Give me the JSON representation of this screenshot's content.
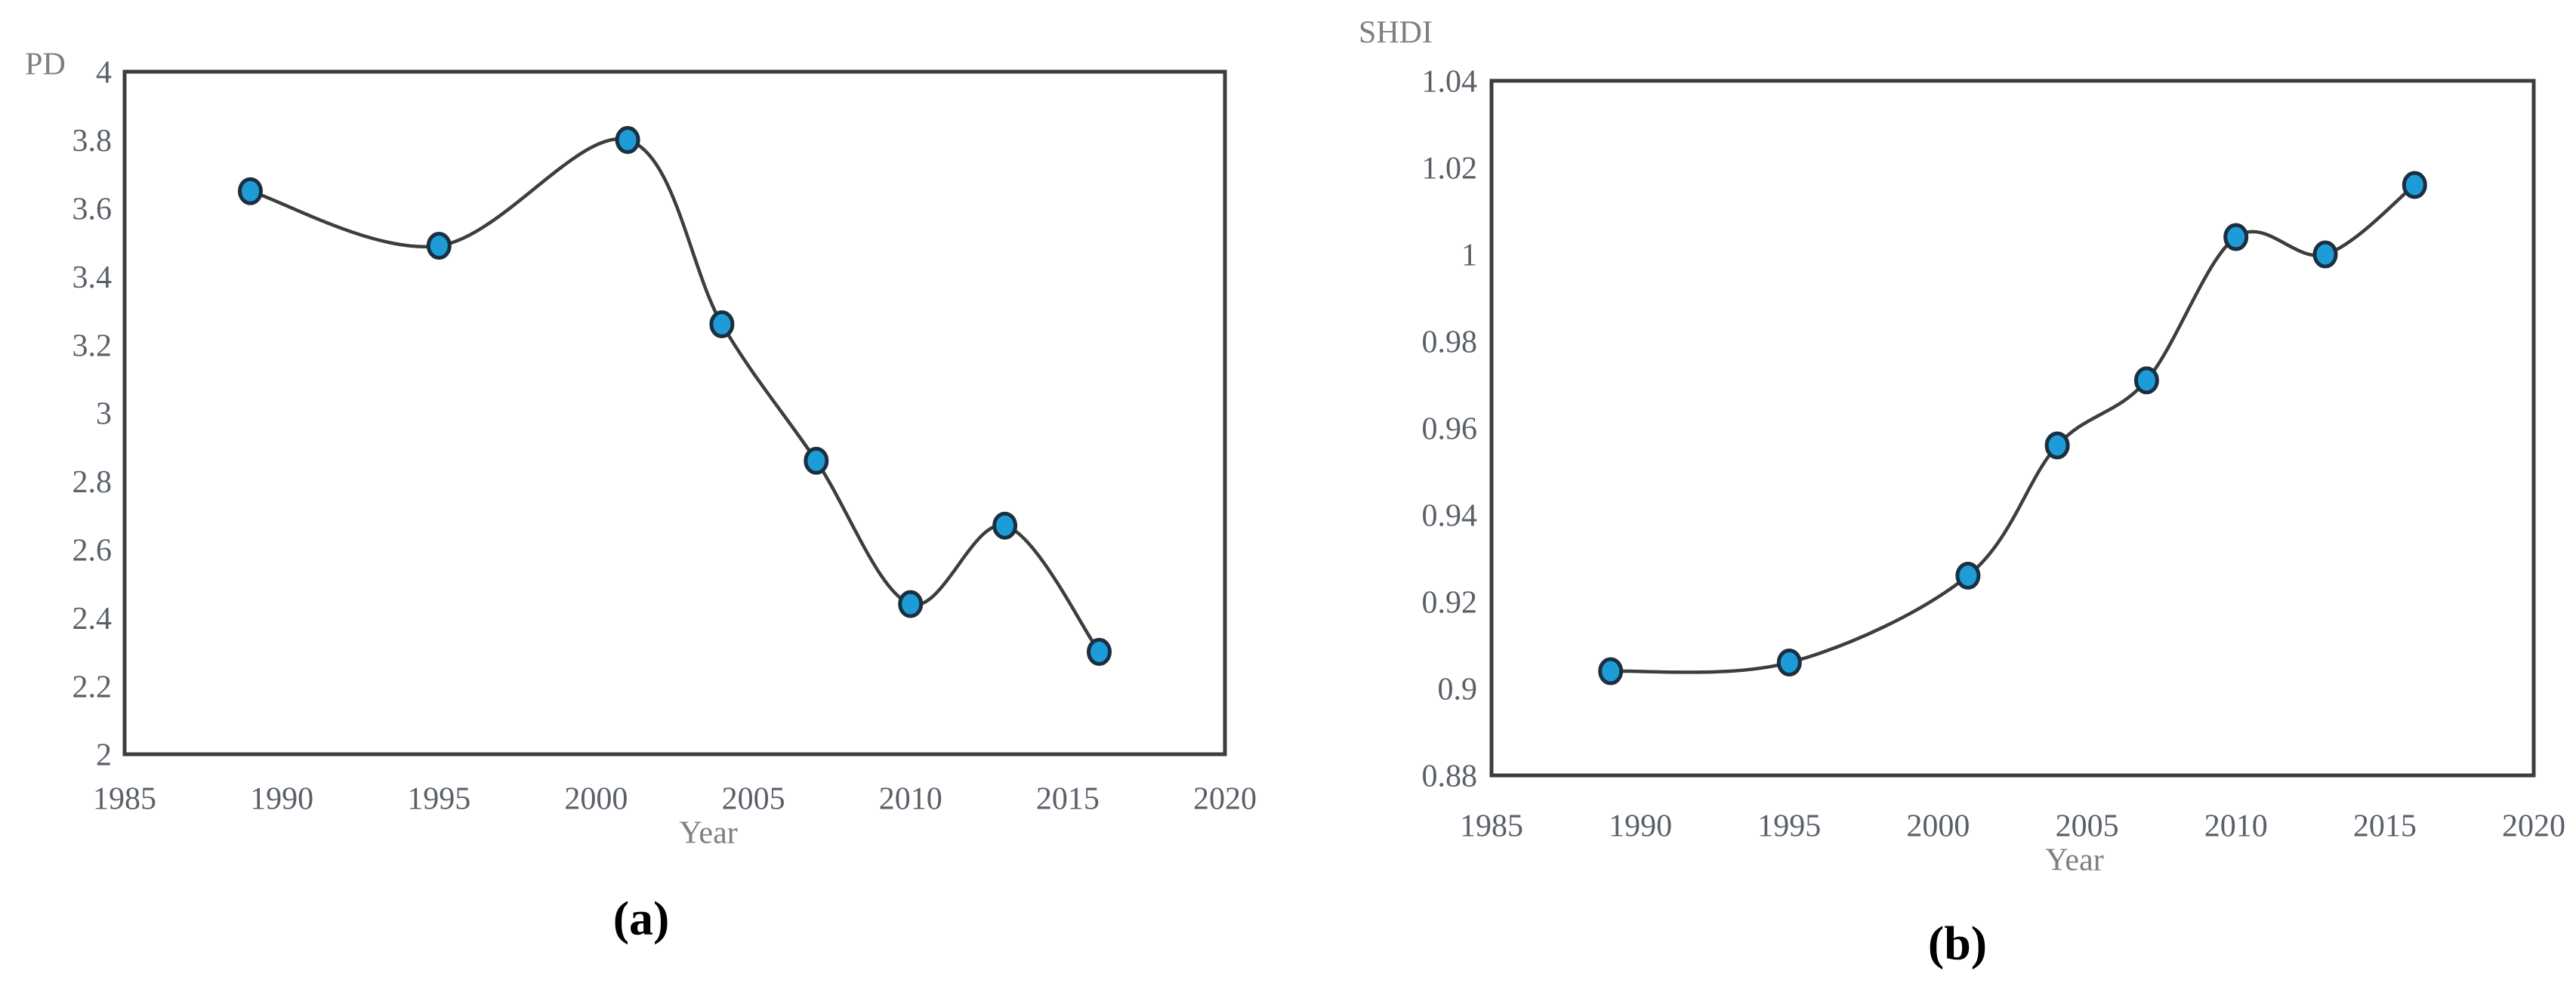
{
  "text_colors": {
    "tick": "#5a6069",
    "axis_title": "#7f7f7f",
    "caption": "#000000"
  },
  "chart_data": [
    {
      "panel": "a",
      "type": "line",
      "caption": "(a)",
      "ylabel": "PD",
      "xlabel": "Year",
      "x": [
        1989,
        1995,
        2001,
        2004,
        2007,
        2010,
        2013,
        2016
      ],
      "y": [
        3.65,
        3.49,
        3.8,
        3.26,
        2.86,
        2.44,
        2.67,
        2.3
      ],
      "xlim": [
        1985,
        2020
      ],
      "ylim": [
        2,
        4
      ],
      "xtick_labels": [
        "1985",
        "1990",
        "1995",
        "2000",
        "2005",
        "2010",
        "2015",
        "2020"
      ],
      "ytick_labels": [
        "4",
        "3.8",
        "3.6",
        "3.4",
        "3.2",
        "3",
        "2.8",
        "2.6",
        "2.4",
        "2.2",
        "2"
      ],
      "grid": false,
      "legend": false,
      "smooth": true,
      "marker_fill": "#1d9cd8",
      "marker_stroke": "#1b2f40",
      "line_color": "#3d3d3d"
    },
    {
      "panel": "b",
      "type": "line",
      "caption": "(b)",
      "ylabel": "SHDI",
      "xlabel": "Year",
      "x": [
        1989,
        1995,
        2001,
        2004,
        2007,
        2010,
        2013,
        2016
      ],
      "y": [
        0.904,
        0.906,
        0.926,
        0.956,
        0.971,
        1.004,
        1.0,
        1.016
      ],
      "xlim": [
        1985,
        2020
      ],
      "ylim": [
        0.88,
        1.04
      ],
      "xtick_labels": [
        "1985",
        "1990",
        "1995",
        "2000",
        "2005",
        "2010",
        "2015",
        "2020"
      ],
      "ytick_labels": [
        "1.04",
        "1.02",
        "1",
        "0.98",
        "0.96",
        "0.94",
        "0.92",
        "0.9",
        "0.88"
      ],
      "grid": false,
      "legend": false,
      "smooth": true,
      "marker_fill": "#1d9cd8",
      "marker_stroke": "#1b2f40",
      "line_color": "#3d3d3d"
    }
  ]
}
